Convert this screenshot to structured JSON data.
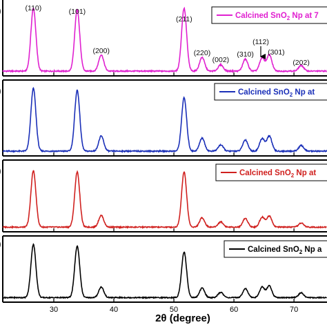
{
  "chart_data": {
    "type": "line",
    "xlabel": "2θ (degree)",
    "xlim": [
      21.5,
      75.5
    ],
    "x_ticks": [
      30,
      40,
      50,
      60,
      70
    ],
    "y_ticks_shown": false,
    "grid": false,
    "legend_placement": "top-right (per panel)",
    "panel_ids": [
      ")",
      ")",
      ")",
      ")"
    ],
    "annotations": {
      "peaks": [
        {
          "label": "(110)",
          "x": 26.6
        },
        {
          "label": "(101)",
          "x": 33.9
        },
        {
          "label": "(200)",
          "x": 37.9
        },
        {
          "label": "(211)",
          "x": 51.7
        },
        {
          "label": "(220)",
          "x": 54.7
        },
        {
          "label": "(002)",
          "x": 57.8
        },
        {
          "label": "(310)",
          "x": 61.9
        },
        {
          "label": "(112)",
          "x": 64.7
        },
        {
          "label": "(301)",
          "x": 65.9
        },
        {
          "label": "(202)",
          "x": 71.2
        }
      ],
      "arrow_peak": "(112)"
    },
    "series": [
      {
        "name": "Calcined SnO2 Np at 7",
        "color": "#e020d0",
        "peaks": [
          [
            26.6,
            1.0
          ],
          [
            33.9,
            0.98
          ],
          [
            37.9,
            0.26
          ],
          [
            51.7,
            1.0
          ],
          [
            54.7,
            0.22
          ],
          [
            57.8,
            0.1
          ],
          [
            61.9,
            0.19
          ],
          [
            64.7,
            0.21
          ],
          [
            65.9,
            0.26
          ],
          [
            71.2,
            0.09
          ]
        ]
      },
      {
        "name": "Calcined SnO2 Np at",
        "color": "#1a2fb8",
        "peaks": [
          [
            26.6,
            1.0
          ],
          [
            33.9,
            0.97
          ],
          [
            37.9,
            0.24
          ],
          [
            51.7,
            0.85
          ],
          [
            54.7,
            0.21
          ],
          [
            57.8,
            0.1
          ],
          [
            61.9,
            0.18
          ],
          [
            64.7,
            0.2
          ],
          [
            65.9,
            0.24
          ],
          [
            71.2,
            0.09
          ]
        ]
      },
      {
        "name": "Calcined SnO2 Np at",
        "color": "#d0201e",
        "peaks": [
          [
            26.6,
            0.96
          ],
          [
            33.9,
            0.94
          ],
          [
            37.9,
            0.2
          ],
          [
            51.7,
            0.94
          ],
          [
            54.7,
            0.16
          ],
          [
            57.8,
            0.09
          ],
          [
            61.9,
            0.15
          ],
          [
            64.7,
            0.17
          ],
          [
            65.9,
            0.19
          ],
          [
            71.2,
            0.07
          ]
        ]
      },
      {
        "name": "Calcined SnO2 Np a",
        "color": "#000000",
        "peaks": [
          [
            26.6,
            1.0
          ],
          [
            33.9,
            0.97
          ],
          [
            37.9,
            0.2
          ],
          [
            51.7,
            0.86
          ],
          [
            54.7,
            0.18
          ],
          [
            57.8,
            0.1
          ],
          [
            61.9,
            0.17
          ],
          [
            64.7,
            0.2
          ],
          [
            65.9,
            0.22
          ],
          [
            71.2,
            0.09
          ]
        ]
      }
    ]
  }
}
